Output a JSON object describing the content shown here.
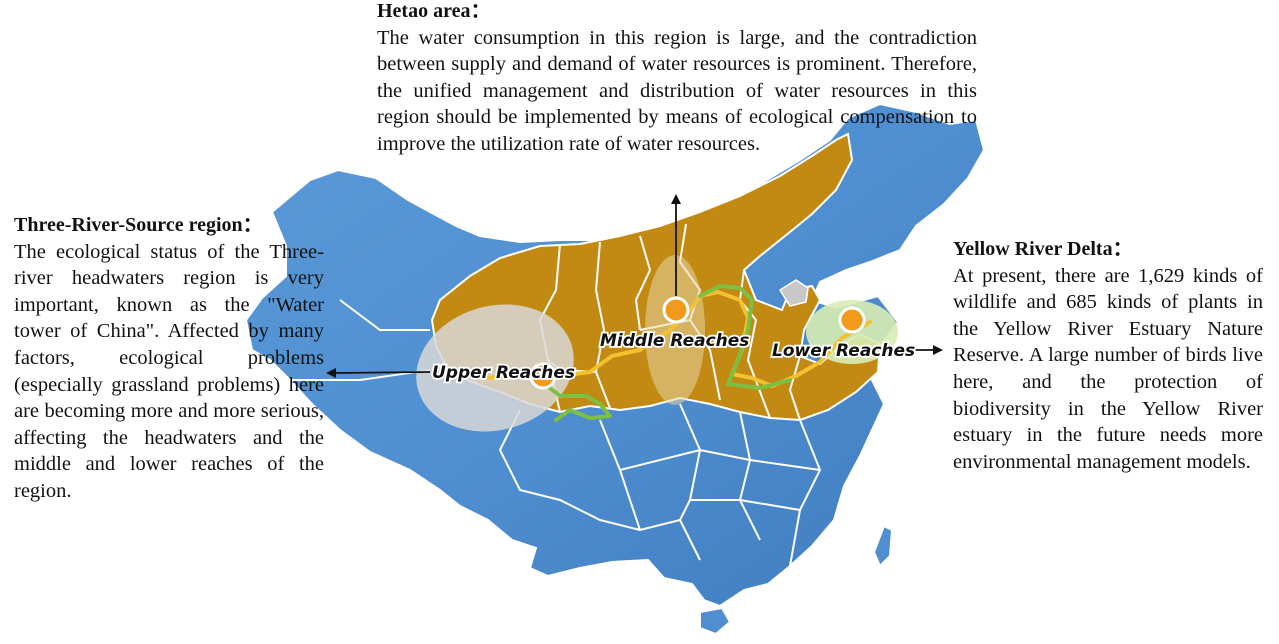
{
  "annotations": {
    "hetao": {
      "heading": "Hetao area：",
      "body": "The water consumption in this region is large, and the contradiction between supply and demand of water resources is prominent. Therefore, the unified management and distribution of water resources in this region should be implemented by means of ecological compensation to improve the utilization rate of water resources."
    },
    "three_river_source": {
      "heading": "Three-River-Source region：",
      "body": "The ecological status of the Three-river headwaters region is very important, known as the \"Water tower of China\". Affected by many factors, ecological problems (especially grassland problems) here are becoming more and more serious, affecting the headwaters and the middle and lower reaches of the region."
    },
    "yellow_river_delta": {
      "heading": "Yellow River Delta：",
      "body": "At present, there are 1,629 kinds of wildlife and 685 kinds of plants in the Yellow River Estuary Nature Reserve. A large number of birds live here, and the protection of biodiversity in the Yellow River estuary in the future needs more environmental management models."
    }
  },
  "reach_labels": {
    "upper": "Upper Reaches",
    "middle": "Middle Reaches",
    "lower": "Lower Reaches"
  },
  "colors": {
    "province_blue": "#4f8ed0",
    "yellow_river_basin": "#c28a12",
    "river_yellow": "#f2c230",
    "river_green": "#7cc043",
    "marker_orange": "#f29a1c",
    "upper_zone": "#d8d8d8",
    "lower_zone": "#d7ecb4",
    "border_white": "#ffffff"
  }
}
